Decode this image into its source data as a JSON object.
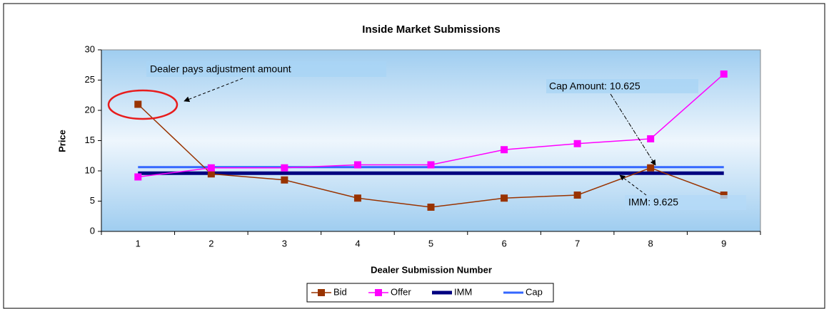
{
  "chart_data": {
    "type": "line",
    "title": "Inside Market Submissions",
    "x_label": "Dealer Submission Number",
    "y_label": "Price",
    "categories": [
      "1",
      "2",
      "3",
      "4",
      "5",
      "6",
      "7",
      "8",
      "9"
    ],
    "series": [
      {
        "name": "Bid",
        "color": "#993300",
        "marker": "square",
        "width": 1.5,
        "values": [
          21,
          9.5,
          8.5,
          5.5,
          4,
          5.5,
          6,
          10.5,
          6
        ]
      },
      {
        "name": "Offer",
        "color": "#ff00ff",
        "marker": "square",
        "width": 1.5,
        "values": [
          9,
          10.5,
          10.5,
          11,
          11,
          13.5,
          14.5,
          15.3,
          26
        ]
      },
      {
        "name": "IMM",
        "color": "#000080",
        "marker": "none",
        "width": 5,
        "values": [
          9.625,
          9.625,
          9.625,
          9.625,
          9.625,
          9.625,
          9.625,
          9.625,
          9.625
        ]
      },
      {
        "name": "Cap",
        "color": "#3366ff",
        "marker": "none",
        "width": 3,
        "values": [
          10.625,
          10.625,
          10.625,
          10.625,
          10.625,
          10.625,
          10.625,
          10.625,
          10.625
        ]
      }
    ],
    "ylim": [
      0,
      30
    ],
    "yticks": [
      0,
      5,
      10,
      15,
      20,
      25,
      30
    ],
    "annotations": [
      "Dealer pays adjustment amount",
      "Cap Amount: 10.625",
      "IMM: 9.625"
    ]
  }
}
